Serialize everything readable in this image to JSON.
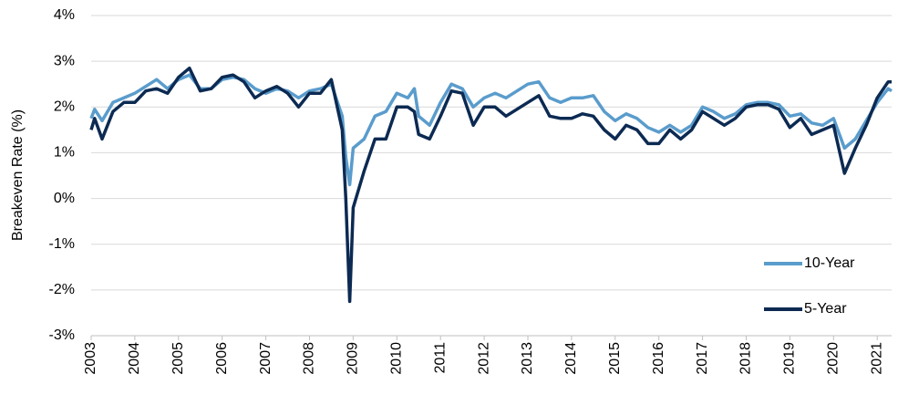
{
  "chart_data": {
    "type": "line",
    "y_label": "Breakeven Rate (%)",
    "x": [
      2003,
      2003.08,
      2003.25,
      2003.5,
      2003.75,
      2004,
      2004.25,
      2004.5,
      2004.75,
      2005,
      2005.25,
      2005.5,
      2005.75,
      2006,
      2006.25,
      2006.5,
      2006.75,
      2007,
      2007.25,
      2007.5,
      2007.75,
      2008,
      2008.25,
      2008.5,
      2008.75,
      2008.83,
      2008.92,
      2009,
      2009.25,
      2009.5,
      2009.75,
      2010,
      2010.25,
      2010.4,
      2010.5,
      2010.75,
      2011,
      2011.25,
      2011.5,
      2011.75,
      2012,
      2012.25,
      2012.5,
      2013,
      2013.25,
      2013.5,
      2013.75,
      2014,
      2014.25,
      2014.5,
      2014.75,
      2015,
      2015.25,
      2015.5,
      2015.75,
      2016,
      2016.25,
      2016.5,
      2016.75,
      2017,
      2017.25,
      2017.5,
      2017.75,
      2018,
      2018.25,
      2018.5,
      2018.75,
      2019,
      2019.25,
      2019.5,
      2019.75,
      2020,
      2020.25,
      2020.5,
      2020.75,
      2021,
      2021.25,
      2021.33
    ],
    "series": [
      {
        "name": "10-Year",
        "color": "#5a9ccc",
        "values": [
          1.75,
          1.95,
          1.7,
          2.1,
          2.2,
          2.3,
          2.45,
          2.6,
          2.4,
          2.6,
          2.7,
          2.4,
          2.4,
          2.6,
          2.65,
          2.6,
          2.4,
          2.3,
          2.4,
          2.35,
          2.2,
          2.35,
          2.4,
          2.5,
          1.8,
          0.9,
          0.3,
          1.1,
          1.3,
          1.8,
          1.9,
          2.3,
          2.2,
          2.4,
          1.8,
          1.6,
          2.1,
          2.5,
          2.4,
          2.0,
          2.2,
          2.3,
          2.2,
          2.5,
          2.55,
          2.2,
          2.1,
          2.2,
          2.2,
          2.25,
          1.9,
          1.7,
          1.85,
          1.75,
          1.55,
          1.45,
          1.6,
          1.45,
          1.6,
          2.0,
          1.9,
          1.75,
          1.85,
          2.05,
          2.1,
          2.1,
          2.05,
          1.8,
          1.85,
          1.65,
          1.6,
          1.75,
          1.1,
          1.3,
          1.7,
          2.1,
          2.4,
          2.35
        ]
      },
      {
        "name": "5-Year",
        "color": "#0c2a52",
        "values": [
          1.5,
          1.75,
          1.3,
          1.9,
          2.1,
          2.1,
          2.35,
          2.4,
          2.3,
          2.65,
          2.85,
          2.35,
          2.4,
          2.65,
          2.7,
          2.55,
          2.2,
          2.35,
          2.45,
          2.3,
          2.0,
          2.3,
          2.3,
          2.6,
          1.5,
          0,
          -2.25,
          -0.2,
          0.6,
          1.3,
          1.3,
          2.0,
          2.0,
          1.9,
          1.4,
          1.3,
          1.8,
          2.35,
          2.3,
          1.6,
          2.0,
          2.0,
          1.8,
          2.1,
          2.25,
          1.8,
          1.75,
          1.75,
          1.85,
          1.8,
          1.5,
          1.3,
          1.6,
          1.5,
          1.2,
          1.2,
          1.5,
          1.3,
          1.5,
          1.9,
          1.75,
          1.6,
          1.75,
          2.0,
          2.05,
          2.05,
          1.95,
          1.55,
          1.75,
          1.4,
          1.5,
          1.6,
          0.55,
          1.1,
          1.6,
          2.2,
          2.55,
          2.55
        ]
      }
    ],
    "xlim": [
      2003,
      2021.33
    ],
    "xticks": [
      2003,
      2004,
      2005,
      2006,
      2007,
      2008,
      2009,
      2010,
      2011,
      2012,
      2013,
      2014,
      2015,
      2016,
      2017,
      2018,
      2019,
      2020,
      2021
    ],
    "ylim": [
      -3,
      4
    ],
    "yticks": [
      {
        "value": -3,
        "label": "-3%"
      },
      {
        "value": -2,
        "label": "-2%"
      },
      {
        "value": -1,
        "label": "-1%"
      },
      {
        "value": 0,
        "label": "0%"
      },
      {
        "value": 1,
        "label": "1%"
      },
      {
        "value": 2,
        "label": "2%"
      },
      {
        "value": 3,
        "label": "3%"
      },
      {
        "value": 4,
        "label": "4%"
      }
    ],
    "grid": true,
    "legend": "lower right"
  }
}
